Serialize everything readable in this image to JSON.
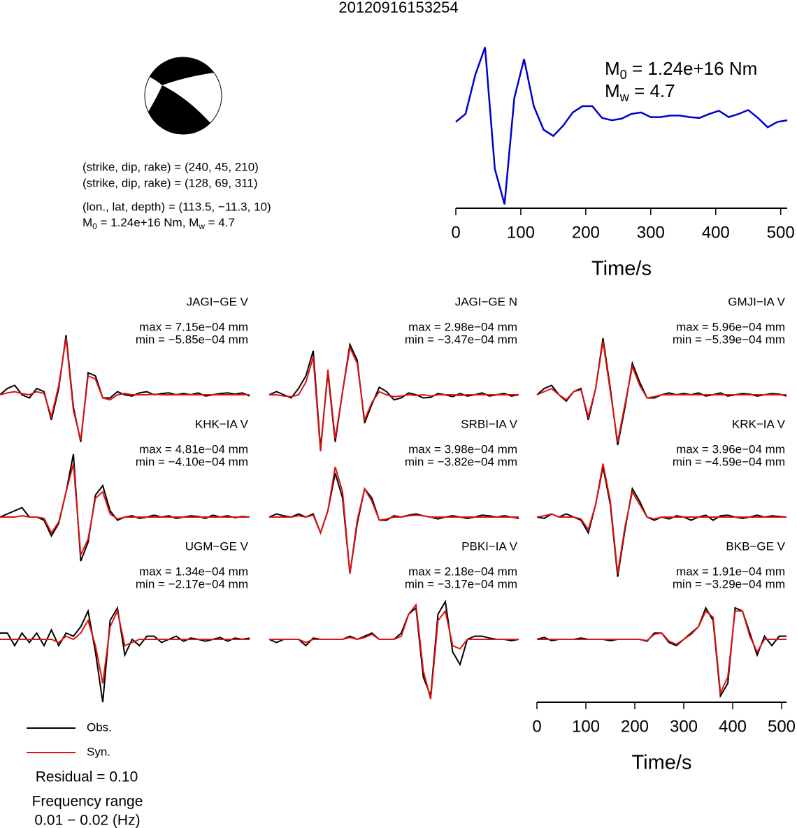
{
  "title": "20120916153254",
  "focal_mechanism": {
    "lines": [
      "(strike, dip, rake) = (240, 45, 210)",
      "(strike, dip, rake) = (128, 69, 311)",
      "(lon., lat, depth) = (113.5, −11.3, 10)"
    ],
    "moment_line": [
      "M",
      "0",
      " = 1.24e+16 Nm, M",
      "w",
      " = 4.7"
    ]
  },
  "chart_data": [
    {
      "type": "line",
      "annotations": [
        [
          "M",
          "0",
          " = 1.24e+16 Nm"
        ],
        [
          "M",
          "w",
          " = 4.7"
        ]
      ],
      "color": "#0000cc",
      "x": [
        0,
        15,
        30,
        45,
        60,
        75,
        90,
        105,
        120,
        135,
        150,
        165,
        180,
        195,
        210,
        225,
        240,
        255,
        270,
        285,
        300,
        315,
        330,
        345,
        360,
        375,
        390,
        405,
        420,
        435,
        450,
        465,
        480,
        495,
        510
      ],
      "values": [
        0,
        0.1,
        0.6,
        0.95,
        -0.6,
        -1.05,
        0.3,
        0.8,
        0.2,
        -0.1,
        -0.18,
        -0.05,
        0.12,
        0.2,
        0.2,
        0.05,
        0.02,
        0.04,
        0.1,
        0.12,
        0.06,
        0.06,
        0.08,
        0.08,
        0.06,
        0.05,
        0.1,
        0.14,
        0.06,
        0.1,
        0.15,
        0.05,
        -0.07,
        0,
        0.02
      ],
      "xlim": [
        0,
        510
      ],
      "xticks": [
        0,
        100,
        200,
        300,
        400,
        500
      ],
      "ylim": [
        -1.1,
        1.0
      ],
      "xlabel": "Time/s"
    },
    {
      "type": "seismogram",
      "series": [
        {
          "name": "Obs.",
          "color": "#000000"
        },
        {
          "name": "Syn.",
          "color": "#e01010"
        }
      ],
      "x": [
        0,
        15,
        30,
        45,
        60,
        75,
        90,
        105,
        120,
        135,
        150,
        165,
        180,
        195,
        210,
        225,
        240,
        255,
        270,
        285,
        300,
        315,
        330,
        345,
        360,
        375,
        390,
        405,
        420,
        435,
        450,
        465,
        480,
        495,
        510
      ],
      "xlim": [
        0,
        510
      ],
      "xticks": [
        0,
        100,
        200,
        300,
        400,
        500
      ],
      "ylim": [
        -1,
        1
      ],
      "xlabel": "Time/s",
      "residual": "Residual = 0.10",
      "frequency": [
        "Frequency range",
        "0.01 − 0.02 (Hz)"
      ],
      "panels": [
        {
          "title": "JAGI−GE V",
          "max": "max = 7.15e−04 mm",
          "min": "min = −5.85e−04 mm",
          "series": [
            {
              "values": [
                0,
                0.1,
                0.15,
                0,
                -0.05,
                0.1,
                0.05,
                -0.4,
                0.1,
                0.95,
                -0.2,
                -0.75,
                0.35,
                0.3,
                -0.05,
                -0.05,
                0.05,
                0,
                -0.02,
                0.03,
                0.05,
                0,
                0.02,
                0.03,
                0,
                0.02,
                0,
                0.03,
                -0.02,
                0,
                0.02,
                0.03,
                0.01,
                0.03,
                -0.02
              ]
            },
            {
              "values": [
                0,
                0.03,
                0.05,
                0.02,
                0,
                0.05,
                0.02,
                -0.35,
                0.15,
                0.9,
                -0.25,
                -0.72,
                0.3,
                0.25,
                -0.05,
                -0.08,
                0,
                0.02,
                0,
                0,
                0,
                0.01,
                0,
                0,
                0,
                0,
                0,
                0,
                0,
                0,
                0,
                0,
                0,
                0,
                0
              ]
            }
          ]
        },
        {
          "title": "JAGI−GE N",
          "max": "max = 2.98e−04 mm",
          "min": "min = −3.47e−04 mm",
          "series": [
            {
              "values": [
                0,
                0.05,
                0,
                -0.05,
                0.1,
                0.3,
                0.7,
                -0.85,
                0.35,
                -0.75,
                0.05,
                0.8,
                0.55,
                -0.45,
                -0.15,
                0.12,
                0.05,
                -0.08,
                -0.05,
                0.03,
                0,
                -0.05,
                -0.04,
                0.02,
                0,
                -0.03,
                0.02,
                -0.02,
                0,
                0.03,
                -0.02,
                0,
                0.02,
                -0.02,
                0
              ]
            },
            {
              "values": [
                0,
                0,
                -0.02,
                -0.03,
                0,
                0.2,
                0.6,
                -0.9,
                0.4,
                -0.7,
                0.05,
                0.75,
                0.5,
                -0.4,
                -0.12,
                0.05,
                0,
                -0.03,
                -0.02,
                0,
                -0.01,
                0,
                -0.02,
                0,
                0,
                0,
                -0.01,
                0,
                0,
                0,
                0,
                0,
                0,
                0,
                0
              ]
            }
          ]
        },
        {
          "title": "GMJI−IA V",
          "max": "max = 5.96e−04 mm",
          "min": "min = −5.39e−04 mm",
          "series": [
            {
              "values": [
                0,
                0.1,
                0.15,
                0,
                -0.1,
                0.05,
                0.1,
                -0.4,
                0.1,
                0.9,
                0.1,
                -0.8,
                -0.2,
                0.5,
                0.2,
                -0.05,
                -0.05,
                0,
                0.03,
                0,
                0.02,
                0,
                0.03,
                -0.02,
                0,
                0.03,
                -0.02,
                0,
                0.02,
                0.01,
                -0.02,
                0,
                0.02,
                0.01,
                -0.02
              ]
            },
            {
              "values": [
                0,
                0.05,
                0.1,
                0,
                -0.08,
                0.05,
                0.08,
                -0.35,
                0.1,
                0.85,
                0.05,
                -0.75,
                -0.15,
                0.45,
                0.15,
                -0.05,
                -0.03,
                0,
                0,
                0,
                0,
                0,
                0,
                0,
                0,
                0,
                0,
                0,
                0,
                0,
                0,
                0,
                0,
                0,
                0
              ]
            }
          ]
        },
        {
          "title": "KHK−IA V",
          "max": "max = 4.81e−04 mm",
          "min": "min = −4.10e−04 mm",
          "series": [
            {
              "values": [
                0,
                0.05,
                0.1,
                0.15,
                0,
                0,
                -0.05,
                -0.3,
                -0.1,
                0.4,
                1.0,
                -0.7,
                -0.4,
                0.35,
                0.5,
                0.1,
                -0.05,
                0,
                0.02,
                -0.02,
                0,
                0.03,
                0,
                0.02,
                -0.02,
                0,
                0.02,
                0.01,
                -0.02,
                0.03,
                0,
                0.02,
                -0.01,
                0.01,
                0
              ]
            },
            {
              "values": [
                0,
                0,
                0,
                0.02,
                0,
                0,
                -0.02,
                -0.25,
                -0.08,
                0.4,
                0.85,
                -0.6,
                -0.35,
                0.3,
                0.4,
                0.05,
                -0.03,
                0,
                0,
                0,
                0,
                0,
                0,
                0,
                0,
                0,
                0,
                0,
                0,
                0,
                0,
                0,
                0,
                0,
                0
              ]
            }
          ]
        },
        {
          "title": "SRBI−IA V",
          "max": "max = 3.98e−04 mm",
          "min": "min = −3.82e−04 mm",
          "series": [
            {
              "values": [
                0,
                0.05,
                0.02,
                0,
                0.05,
                0,
                0.05,
                -0.25,
                0.1,
                0.7,
                0.3,
                -0.9,
                -0.1,
                0.45,
                0.3,
                -0.05,
                -0.05,
                0.02,
                0,
                0.03,
                0.05,
                0.02,
                0,
                -0.03,
                0,
                0.02,
                0,
                -0.02,
                0,
                0.03,
                0.02,
                0,
                0.02,
                0,
                -0.02
              ]
            },
            {
              "values": [
                0,
                0,
                0,
                0,
                0.02,
                0,
                0.03,
                -0.25,
                0.1,
                0.8,
                0.4,
                -0.9,
                -0.05,
                0.45,
                0.25,
                -0.05,
                -0.03,
                0,
                0,
                0.02,
                0.03,
                0.02,
                0,
                0,
                0,
                0,
                0,
                0,
                0,
                0,
                0,
                0,
                0,
                0,
                0
              ]
            }
          ]
        },
        {
          "title": "KRK−IA V",
          "max": "max = 3.96e−04 mm",
          "min": "min = −4.59e−04 mm",
          "series": [
            {
              "values": [
                0,
                -0.02,
                0.05,
                0,
                0.05,
                0,
                -0.05,
                -0.25,
                0.2,
                0.8,
                0.2,
                -0.95,
                -0.2,
                0.45,
                0.25,
                0,
                -0.05,
                0,
                -0.03,
                0.02,
                0,
                -0.05,
                0,
                0.03,
                -0.05,
                0.02,
                0.03,
                0,
                -0.02,
                0,
                0.03,
                0,
                0.02,
                0.01,
                0
              ]
            },
            {
              "values": [
                0,
                0.02,
                0.05,
                0,
                0,
                0,
                -0.03,
                -0.2,
                0.2,
                0.85,
                0.25,
                -0.9,
                -0.15,
                0.4,
                0.2,
                0,
                -0.03,
                0,
                0,
                0,
                0,
                0,
                0,
                0,
                0,
                0,
                0,
                0,
                0,
                0,
                0,
                0,
                0,
                0,
                0
              ]
            }
          ]
        },
        {
          "title": "UGM−GE V",
          "max": "max = 1.34e−04 mm",
          "min": "min = −2.17e−04 mm",
          "series": [
            {
              "values": [
                0.1,
                0.1,
                -0.1,
                0.1,
                -0.05,
                0.1,
                -0.1,
                0.15,
                -0.1,
                0.1,
                0.05,
                0.2,
                0.45,
                -0.2,
                -1.0,
                0.3,
                0.5,
                -0.25,
                0,
                -0.1,
                0.05,
                0.05,
                -0.05,
                0,
                0.05,
                -0.03,
                0.02,
                0,
                -0.03,
                0,
                0.03,
                -0.03,
                0.02,
                0,
                0.02
              ]
            },
            {
              "values": [
                0,
                0,
                0,
                0,
                0,
                0,
                0,
                0,
                -0.05,
                0.05,
                0,
                0.1,
                0.3,
                -0.1,
                -0.7,
                0.2,
                0.45,
                -0.1,
                -0.05,
                0,
                0,
                0,
                0,
                0,
                0,
                0,
                0,
                0,
                0,
                0,
                0,
                0,
                0,
                0,
                0
              ]
            }
          ]
        },
        {
          "title": "PBKI−IA V",
          "max": "max = 2.18e−04 mm",
          "min": "min = −3.17e−04 mm",
          "series": [
            {
              "values": [
                0,
                -0.05,
                0,
                0,
                0,
                -0.1,
                0.02,
                0,
                0,
                0,
                0,
                0.05,
                0,
                0.05,
                0.1,
                0,
                0,
                0,
                0.1,
                0.4,
                0.5,
                -0.6,
                -0.9,
                0.4,
                0.6,
                -0.2,
                -0.4,
                0,
                0.05,
                0.05,
                0.02,
                0,
                0,
                -0.02,
                0
              ]
            },
            {
              "values": [
                0,
                0,
                0,
                0,
                0,
                -0.05,
                0,
                0,
                0,
                0,
                0,
                0.03,
                0,
                0.03,
                0.08,
                0,
                0,
                0,
                0.05,
                0.4,
                0.55,
                -0.5,
                -0.95,
                0.3,
                0.45,
                -0.1,
                -0.15,
                0,
                0,
                0,
                0,
                0,
                0,
                0,
                0
              ]
            }
          ]
        },
        {
          "title": "BKB−GE V",
          "max": "max = 1.91e−04 mm",
          "min": "min = −3.29e−04 mm",
          "series": [
            {
              "values": [
                0,
                0.03,
                -0.02,
                0,
                0,
                0,
                0.02,
                0,
                0,
                0,
                -0.02,
                0,
                0,
                0,
                0,
                -0.03,
                0.1,
                0.1,
                -0.05,
                -0.1,
                0,
                0.1,
                0.2,
                0.5,
                0.3,
                -0.9,
                -0.7,
                0.5,
                0.45,
                0.1,
                -0.25,
                0.05,
                -0.1,
                0.05,
                0.05
              ]
            },
            {
              "values": [
                0,
                0,
                0,
                0,
                0,
                0,
                0,
                0,
                0,
                0,
                0,
                0,
                0,
                0,
                0,
                -0.02,
                0.08,
                0.1,
                -0.03,
                -0.08,
                0,
                0.08,
                0.2,
                0.45,
                0.35,
                -0.85,
                -0.6,
                0.45,
                0.45,
                0.05,
                -0.2,
                0,
                0,
                0,
                0
              ]
            }
          ]
        }
      ]
    }
  ]
}
